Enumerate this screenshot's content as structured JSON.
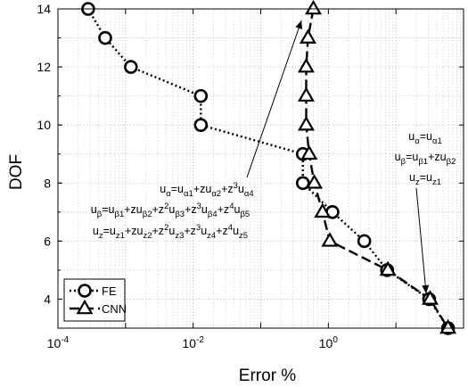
{
  "chart_data": {
    "type": "line",
    "xlabel": "Error %",
    "ylabel": "DOF",
    "xscale": "log",
    "xlim": [
      0.0001,
      100
    ],
    "ylim": [
      3,
      14
    ],
    "grid": true,
    "legend_position": "bottom-left",
    "x_ticks": [
      {
        "value": 0.0001,
        "base": "10",
        "exp": "-4"
      },
      {
        "value": 0.01,
        "base": "10",
        "exp": "-2"
      },
      {
        "value": 1,
        "base": "10",
        "exp": "0"
      }
    ],
    "y_ticks": [
      "4",
      "6",
      "8",
      "10",
      "12",
      "14"
    ],
    "series": [
      {
        "name": "FE",
        "marker": "circle",
        "linestyle": "dotted",
        "points": [
          {
            "x": 0.00028,
            "y": 14
          },
          {
            "x": 0.0005,
            "y": 13
          },
          {
            "x": 0.0012,
            "y": 12
          },
          {
            "x": 0.013,
            "y": 11
          },
          {
            "x": 0.013,
            "y": 10
          },
          {
            "x": 0.42,
            "y": 9
          },
          {
            "x": 0.42,
            "y": 8
          },
          {
            "x": 1.15,
            "y": 7
          },
          {
            "x": 3.4,
            "y": 6
          },
          {
            "x": 7.4,
            "y": 5
          },
          {
            "x": 31,
            "y": 4
          },
          {
            "x": 59,
            "y": 3
          }
        ]
      },
      {
        "name": "CNN",
        "marker": "triangle",
        "linestyle": "dashed",
        "points": [
          {
            "x": 0.6,
            "y": 14
          },
          {
            "x": 0.5,
            "y": 13
          },
          {
            "x": 0.47,
            "y": 12
          },
          {
            "x": 0.47,
            "y": 11
          },
          {
            "x": 0.47,
            "y": 10
          },
          {
            "x": 0.52,
            "y": 9
          },
          {
            "x": 0.62,
            "y": 8
          },
          {
            "x": 0.82,
            "y": 7
          },
          {
            "x": 1.05,
            "y": 6
          },
          {
            "x": 7.6,
            "y": 5
          },
          {
            "x": 32,
            "y": 4
          },
          {
            "x": 59,
            "y": 3
          }
        ]
      }
    ],
    "annotations": {
      "left_block": {
        "lines": [
          [
            {
              "t": "u"
            },
            {
              "t": "α",
              "s": "sub"
            },
            {
              "t": "=u"
            },
            {
              "t": "α1",
              "s": "sub"
            },
            {
              "t": "+zu"
            },
            {
              "t": "α2",
              "s": "sub"
            },
            {
              "t": "+z"
            },
            {
              "t": "3",
              "s": "sup"
            },
            {
              "t": "u"
            },
            {
              "t": "α4",
              "s": "sub"
            }
          ],
          [
            {
              "t": "u"
            },
            {
              "t": "β",
              "s": "sub"
            },
            {
              "t": "=u"
            },
            {
              "t": "β1",
              "s": "sub"
            },
            {
              "t": "+zu"
            },
            {
              "t": "β2",
              "s": "sub"
            },
            {
              "t": "+z"
            },
            {
              "t": "2",
              "s": "sup"
            },
            {
              "t": "u"
            },
            {
              "t": "β3",
              "s": "sub"
            },
            {
              "t": "+z"
            },
            {
              "t": "3",
              "s": "sup"
            },
            {
              "t": "u"
            },
            {
              "t": "β4",
              "s": "sub"
            },
            {
              "t": "+z"
            },
            {
              "t": "4",
              "s": "sup"
            },
            {
              "t": "u"
            },
            {
              "t": "β5",
              "s": "sub"
            }
          ],
          [
            {
              "t": "u"
            },
            {
              "t": "z",
              "s": "sub"
            },
            {
              "t": "=u"
            },
            {
              "t": "z1",
              "s": "sub"
            },
            {
              "t": "+zu"
            },
            {
              "t": "z2",
              "s": "sub"
            },
            {
              "t": "+z"
            },
            {
              "t": "2",
              "s": "sup"
            },
            {
              "t": "u"
            },
            {
              "t": "z3",
              "s": "sub"
            },
            {
              "t": "+z"
            },
            {
              "t": "3",
              "s": "sup"
            },
            {
              "t": "u"
            },
            {
              "t": "z4",
              "s": "sub"
            },
            {
              "t": "+z"
            },
            {
              "t": "4",
              "s": "sup"
            },
            {
              "t": "u"
            },
            {
              "t": "z5",
              "s": "sub"
            }
          ]
        ],
        "arrow_target": {
          "x": 0.4,
          "y": 13.6
        }
      },
      "right_block": {
        "lines": [
          [
            {
              "t": "u"
            },
            {
              "t": "α",
              "s": "sub"
            },
            {
              "t": "=u"
            },
            {
              "t": "α1",
              "s": "sub"
            }
          ],
          [
            {
              "t": "u"
            },
            {
              "t": "β",
              "s": "sub"
            },
            {
              "t": "=u"
            },
            {
              "t": "β1",
              "s": "sub"
            },
            {
              "t": "+zu"
            },
            {
              "t": "β2",
              "s": "sub"
            }
          ],
          [
            {
              "t": "u"
            },
            {
              "t": "z",
              "s": "sub"
            },
            {
              "t": "=u"
            },
            {
              "t": "z1",
              "s": "sub"
            }
          ]
        ],
        "arrow_target": {
          "x": 28,
          "y": 4.2
        }
      }
    }
  }
}
